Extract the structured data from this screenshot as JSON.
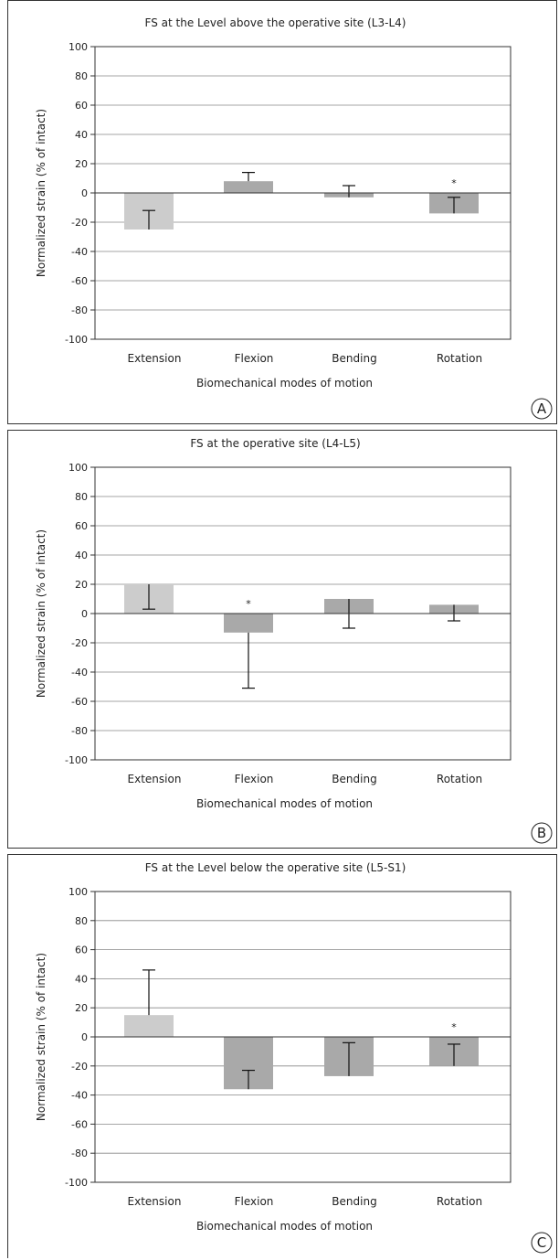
{
  "figure": {
    "panels": [
      {
        "letter": "A"
      },
      {
        "letter": "B"
      },
      {
        "letter": "C"
      }
    ]
  },
  "colors": {
    "extension_bar": "#cccccc",
    "other_bar": "#a9a9a9",
    "gridline": "#888888",
    "axis": "#333333"
  },
  "chart_data": [
    {
      "type": "bar",
      "title": "FS at the Level above the operative site (L3-L4)",
      "xlabel": "Biomechanical modes of motion",
      "ylabel": "Normalized strain  (% of intact)",
      "categories": [
        "Extension",
        "Flexion",
        "Bending",
        "Rotation"
      ],
      "values": [
        -25,
        8,
        -3,
        -14
      ],
      "error_bar_ends": [
        -12,
        14,
        5,
        -3
      ],
      "significance": [
        "",
        "",
        "",
        "*"
      ],
      "yticks": [
        "100",
        "80",
        "60",
        "40",
        "20",
        "0",
        "-20",
        "-40",
        "-60",
        "-80",
        "-100"
      ],
      "ylim": [
        -100,
        100
      ],
      "grid": true
    },
    {
      "type": "bar",
      "title": "FS at the operative site (L4-L5)",
      "xlabel": "Biomechanical modes of motion",
      "ylabel": "Normalized strain  (% of intact)",
      "categories": [
        "Extension",
        "Flexion",
        "Bending",
        "Rotation"
      ],
      "values": [
        20,
        -13,
        10,
        6
      ],
      "error_bar_ends": [
        3,
        -51,
        -10,
        -5
      ],
      "significance": [
        "",
        "*",
        "",
        ""
      ],
      "yticks": [
        "100",
        "80",
        "60",
        "40",
        "20",
        "0",
        "-20",
        "-40",
        "-60",
        "-80",
        "-100"
      ],
      "ylim": [
        -100,
        100
      ],
      "grid": true
    },
    {
      "type": "bar",
      "title": "FS at the Level below the operative site (L5-S1)",
      "xlabel": "Biomechanical modes of motion",
      "ylabel": "Normalized strain  (% of intact)",
      "categories": [
        "Extension",
        "Flexion",
        "Bending",
        "Rotation"
      ],
      "values": [
        15,
        -36,
        -27,
        -20
      ],
      "error_bar_ends": [
        46,
        -23,
        -4,
        -5
      ],
      "significance": [
        "",
        "",
        "",
        "*"
      ],
      "yticks": [
        "100",
        "80",
        "60",
        "40",
        "20",
        "0",
        "-20",
        "-40",
        "-60",
        "-80",
        "-100"
      ],
      "ylim": [
        -100,
        100
      ],
      "grid": true
    }
  ]
}
